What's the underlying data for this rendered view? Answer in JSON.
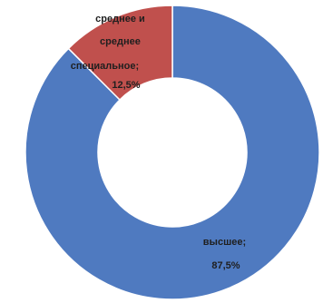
{
  "chart_data": {
    "type": "pie",
    "variant": "donut",
    "slices": [
      {
        "label": "высшее;",
        "value_label": "87,5%",
        "value": 87.5,
        "color": "#4f7ac0"
      },
      {
        "label": "среднее и среднее специальное;",
        "value_label": "12,5%",
        "value": 12.5,
        "color": "#c0504d"
      }
    ],
    "legend": "none"
  }
}
